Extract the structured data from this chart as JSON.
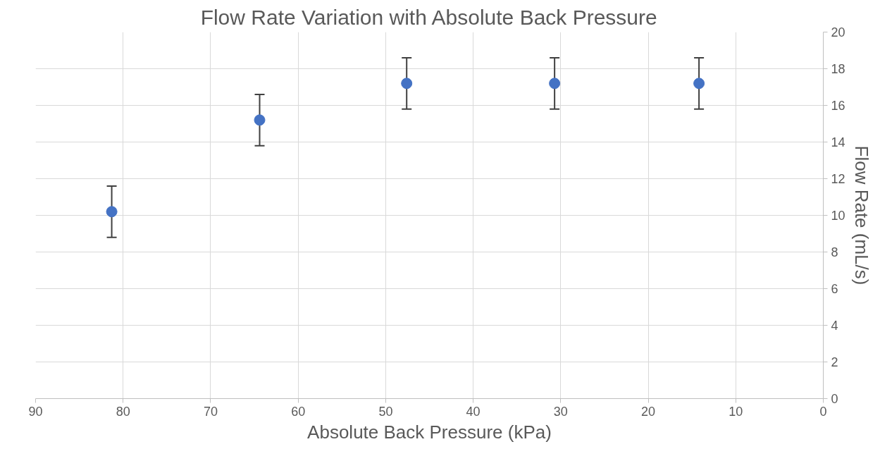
{
  "chart_data": {
    "type": "scatter",
    "title": "Flow Rate Variation with Absolute Back Pressure",
    "xlabel": "Absolute Back Pressure (kPa)",
    "ylabel": "Flow Rate (mL/s)",
    "x": [
      81.3,
      64.4,
      47.6,
      30.7,
      14.2
    ],
    "series": [
      {
        "color": "#4472c4",
        "values": [
          10.2,
          15.2,
          17.2,
          17.2,
          17.2
        ],
        "errors": [
          1.4,
          1.4,
          1.4,
          1.4,
          1.4
        ]
      }
    ],
    "xlim": [
      90,
      0
    ],
    "xticks": [
      90,
      80,
      70,
      60,
      50,
      40,
      30,
      20,
      10,
      0
    ],
    "ylim": [
      0,
      20
    ],
    "yticks": [
      0,
      2,
      4,
      6,
      8,
      10,
      12,
      14,
      16,
      18,
      20
    ],
    "grid": true,
    "marker": "circle"
  }
}
